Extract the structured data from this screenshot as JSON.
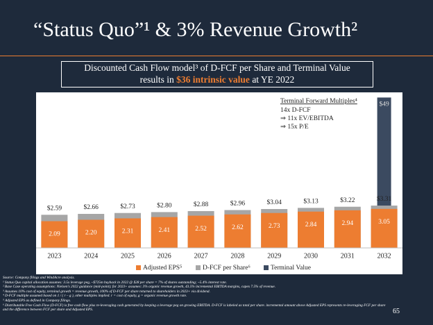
{
  "title": "“Status Quo”¹ & 3% Revenue Growth²",
  "callout": {
    "line1": "Discounted Cash Flow model³ of D-FCF per Share and Terminal Value",
    "line2_pre": "results in ",
    "line2_highlight": "$36 intrinsic value",
    "line2_post": " at YE 2022"
  },
  "chart_data": {
    "type": "bar",
    "categories": [
      "2023",
      "2024",
      "2025",
      "2026",
      "2027",
      "2028",
      "2029",
      "2030",
      "2031",
      "2032"
    ],
    "series": [
      {
        "name": "Adjusted EPS⁵",
        "color": "#ed7d31",
        "values": [
          2.09,
          2.2,
          2.31,
          2.41,
          2.52,
          2.62,
          2.73,
          2.84,
          2.94,
          3.05
        ],
        "value_labels": [
          "2.09",
          "2.20",
          "2.31",
          "2.41",
          "2.52",
          "2.62",
          "2.73",
          "2.84",
          "2.94",
          "3.05"
        ]
      },
      {
        "name": "D-FCF per Share⁶",
        "color": "#a6a6a6",
        "values": [
          2.59,
          2.66,
          2.73,
          2.8,
          2.88,
          2.96,
          3.04,
          3.13,
          3.22,
          3.31
        ],
        "value_labels": [
          "$2.59",
          "$2.66",
          "$2.73",
          "$2.80",
          "$2.88",
          "$2.96",
          "$3.04",
          "$3.13",
          "$3.22",
          "$3.31"
        ]
      },
      {
        "name": "Terminal Value",
        "color": "#3b4a60",
        "axis": "y2",
        "values": [
          null,
          null,
          null,
          null,
          null,
          null,
          null,
          null,
          null,
          49
        ],
        "value_labels": [
          null,
          null,
          null,
          null,
          null,
          null,
          null,
          null,
          null,
          "$49"
        ]
      }
    ],
    "ylim": [
      0,
      12
    ],
    "y2lim": [
      0,
      50
    ],
    "annotation_title": "Terminal Forward Multiples⁴",
    "annotation_lines": [
      "14x D-FCF",
      "⇒ 11x EV/EBITDA",
      "⇒ 15x P/E"
    ]
  },
  "footnotes": [
    "Source: Company filings and WindAcre analysis.",
    "¹ Status Quo capital allocation assumes: 3.5x leverage peg, ~$725m buyback in 2022 @ $28 per share = 7% of shares outstanding; ~5.4% interest rate.",
    "² Base Case operating assumptions: Nielsen's 2022 guidance (mid-point); for 2023+ assumes: 3% organic revenue growth, 43.5% incremental EBITDA margins, capex 7.5% of revenue.",
    "³ Assumes 10% cost of equity, terminal growth = revenue growth, 100% of D-FCF per share returned to shareholders in 2023+ via dividend.",
    "⁴ D-FCF multiple assumed based on 1 / ( r – g ), other multiples implied.  r = cost of equity, g = organic revenue growth rate.",
    "⁵ Adjusted EPS as defined in Company filings.",
    "⁶ Distributable Free Cash Flow (D-FCF) is free cash flow plus re-leveraging cash generated by keeping a leverage peg on growing EBITDA.  D-FCF is labeled as total per share. incremental amount above Adjusted EPS represents re-leveraging FCF per share and the difference between FCF per share and Adjusted EPS."
  ],
  "page_number": "65"
}
